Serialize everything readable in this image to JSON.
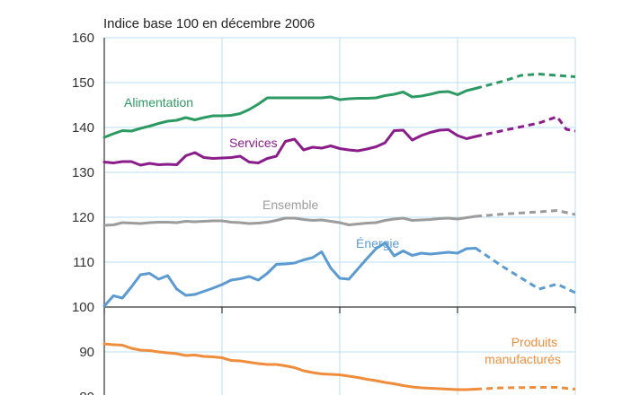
{
  "chart_data": {
    "type": "line",
    "subtitle": "Indice base 100 en décembre 2006",
    "title": "",
    "xlabel": "",
    "ylabel": "",
    "ylim": [
      80,
      160
    ],
    "y_ticks": [
      80,
      90,
      100,
      110,
      120,
      130,
      140,
      150,
      160
    ],
    "x_range": [
      0,
      52
    ],
    "x_grid": [
      0,
      13,
      26,
      39,
      52
    ],
    "projection_start": 41,
    "grid": true,
    "colors": {
      "alimentation": "#2e9a63",
      "services": "#8a1d8a",
      "ensemble": "#9c9c9c",
      "energie": "#5b9bd1",
      "produits": "#ef8d3c",
      "grid": "#b8dcef"
    },
    "series": [
      {
        "key": "alimentation",
        "name": "Alimentation",
        "x": [
          0,
          1,
          2,
          3,
          4,
          5,
          6,
          7,
          8,
          9,
          10,
          11,
          12,
          13,
          14,
          15,
          16,
          17,
          18,
          19,
          20,
          21,
          22,
          23,
          24,
          25,
          26,
          27,
          28,
          29,
          30,
          31,
          32,
          33,
          34,
          35,
          36,
          37,
          38,
          39,
          40,
          41,
          44,
          46,
          48,
          50,
          52
        ],
        "values": [
          137.8,
          138.6,
          139.3,
          139.2,
          139.8,
          140.3,
          140.9,
          141.4,
          141.6,
          142.2,
          141.7,
          142.2,
          142.6,
          142.6,
          142.7,
          143.1,
          144.0,
          145.2,
          146.6,
          146.6,
          146.6,
          146.6,
          146.6,
          146.6,
          146.6,
          146.8,
          146.2,
          146.4,
          146.5,
          146.5,
          146.6,
          147.1,
          147.4,
          147.9,
          146.8,
          147.0,
          147.4,
          147.9,
          148.0,
          147.3,
          148.2,
          148.7,
          150.3,
          151.6,
          151.9,
          151.6,
          151.3
        ]
      },
      {
        "key": "services",
        "name": "Services",
        "x": [
          0,
          1,
          2,
          3,
          4,
          5,
          6,
          7,
          8,
          9,
          10,
          11,
          12,
          13,
          14,
          15,
          16,
          17,
          18,
          19,
          20,
          21,
          22,
          23,
          24,
          25,
          26,
          27,
          28,
          29,
          30,
          31,
          32,
          33,
          34,
          35,
          36,
          37,
          38,
          39,
          40,
          41,
          44,
          48,
          50,
          51,
          52
        ],
        "values": [
          132.3,
          132.1,
          132.4,
          132.4,
          131.6,
          132.0,
          131.7,
          131.8,
          131.7,
          133.7,
          134.4,
          133.3,
          133.1,
          133.2,
          133.3,
          133.6,
          132.3,
          132.1,
          133.1,
          133.6,
          136.9,
          137.4,
          135.0,
          135.6,
          135.4,
          135.9,
          135.3,
          135.0,
          134.8,
          135.2,
          135.7,
          136.6,
          139.3,
          139.4,
          137.2,
          138.2,
          138.9,
          139.4,
          139.5,
          138.2,
          137.5,
          138.0,
          139.3,
          141.0,
          142.4,
          139.6,
          139.2
        ]
      },
      {
        "key": "ensemble",
        "name": "Ensemble",
        "x": [
          0,
          1,
          2,
          3,
          4,
          5,
          6,
          7,
          8,
          9,
          10,
          11,
          12,
          13,
          14,
          15,
          16,
          17,
          18,
          19,
          20,
          21,
          22,
          23,
          24,
          25,
          26,
          27,
          28,
          29,
          30,
          31,
          32,
          33,
          34,
          35,
          36,
          37,
          38,
          39,
          40,
          41,
          44,
          48,
          50,
          52
        ],
        "values": [
          118.2,
          118.3,
          118.8,
          118.7,
          118.6,
          118.8,
          118.9,
          118.9,
          118.8,
          119.1,
          119.0,
          119.1,
          119.2,
          119.2,
          118.9,
          118.8,
          118.6,
          118.7,
          118.9,
          119.3,
          119.8,
          119.8,
          119.5,
          119.3,
          119.4,
          119.1,
          118.8,
          118.3,
          118.5,
          118.7,
          118.8,
          119.3,
          119.6,
          119.8,
          119.3,
          119.4,
          119.5,
          119.7,
          119.8,
          119.6,
          119.9,
          120.2,
          120.7,
          121.2,
          121.5,
          120.6
        ]
      },
      {
        "key": "energie",
        "name": "Énergie",
        "x": [
          0,
          1,
          2,
          3,
          4,
          5,
          6,
          7,
          8,
          9,
          10,
          11,
          12,
          13,
          14,
          15,
          16,
          17,
          18,
          19,
          20,
          21,
          22,
          23,
          24,
          25,
          26,
          27,
          28,
          29,
          30,
          31,
          32,
          33,
          34,
          35,
          36,
          37,
          38,
          39,
          40,
          41,
          44,
          48,
          50,
          52
        ],
        "values": [
          100.2,
          102.5,
          102.0,
          104.5,
          107.2,
          107.5,
          106.2,
          107.0,
          104.0,
          102.6,
          102.8,
          103.5,
          104.2,
          105.0,
          106.0,
          106.3,
          106.8,
          106.0,
          107.5,
          109.5,
          109.6,
          109.8,
          110.5,
          111.0,
          112.3,
          108.7,
          106.4,
          106.2,
          108.5,
          110.8,
          113.0,
          114.3,
          111.4,
          112.5,
          111.5,
          112.0,
          111.8,
          112.0,
          112.2,
          112.0,
          113.0,
          113.1,
          109.0,
          104.0,
          105.1,
          103.2
        ]
      },
      {
        "key": "produits",
        "name": "Produits manufacturés",
        "x": [
          0,
          1,
          2,
          3,
          4,
          5,
          6,
          7,
          8,
          9,
          10,
          11,
          12,
          13,
          14,
          15,
          16,
          17,
          18,
          19,
          20,
          21,
          22,
          23,
          24,
          25,
          26,
          27,
          28,
          29,
          30,
          31,
          32,
          33,
          34,
          35,
          36,
          37,
          38,
          39,
          40,
          41,
          44,
          48,
          50,
          52
        ],
        "values": [
          91.8,
          91.6,
          91.5,
          90.8,
          90.4,
          90.3,
          90.0,
          89.8,
          89.6,
          89.2,
          89.3,
          89.0,
          88.9,
          88.7,
          88.1,
          88.0,
          87.7,
          87.4,
          87.2,
          87.2,
          86.9,
          86.5,
          85.8,
          85.4,
          85.1,
          85.0,
          84.9,
          84.6,
          84.3,
          83.9,
          83.6,
          83.2,
          82.9,
          82.5,
          82.2,
          82.0,
          81.9,
          81.8,
          81.7,
          81.6,
          81.6,
          81.7,
          82.0,
          82.1,
          82.1,
          81.7
        ]
      }
    ]
  }
}
